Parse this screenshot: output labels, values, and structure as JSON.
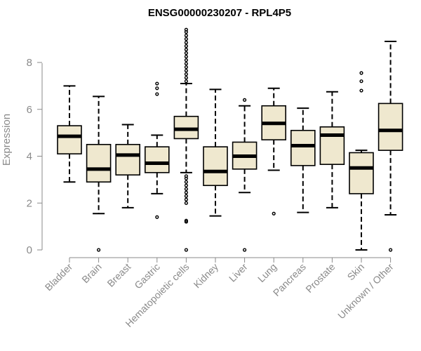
{
  "chart_data": {
    "type": "box",
    "title": "ENSG00000230207 - RPL4P5",
    "ylabel": "Expression",
    "xlabel": "",
    "ylim": [
      0,
      9.4
    ],
    "yticks": [
      0,
      2,
      4,
      6,
      8
    ],
    "box_fill": "#efe8cf",
    "categories": [
      "Bladder",
      "Brain",
      "Breast",
      "Gastric",
      "Hematopoietic cells",
      "Kidney",
      "Liver",
      "Lung",
      "Pancreas",
      "Prostate",
      "Skin",
      "Unknown / Other"
    ],
    "boxes": [
      {
        "min": 2.9,
        "q1": 4.1,
        "median": 4.85,
        "q3": 5.3,
        "max": 7.0,
        "outliers": []
      },
      {
        "min": 1.55,
        "q1": 2.9,
        "median": 3.45,
        "q3": 4.5,
        "max": 6.55,
        "outliers": [
          0.0
        ]
      },
      {
        "min": 1.8,
        "q1": 3.2,
        "median": 4.05,
        "q3": 4.5,
        "max": 5.35,
        "outliers": []
      },
      {
        "min": 2.4,
        "q1": 3.3,
        "median": 3.7,
        "q3": 4.4,
        "max": 4.9,
        "outliers": [
          1.4,
          6.65,
          6.9,
          7.1
        ]
      },
      {
        "min": 3.3,
        "q1": 4.75,
        "median": 5.15,
        "q3": 5.7,
        "max": 7.1,
        "outliers": [
          0.0,
          1.2,
          1.25,
          2.0,
          2.15,
          2.3,
          2.45,
          2.6,
          2.75,
          2.9,
          3.05,
          3.15,
          7.2,
          7.35,
          7.5,
          7.65,
          7.8,
          7.95,
          8.1,
          8.25,
          8.4,
          8.55,
          8.7,
          8.85,
          9.0,
          9.15,
          9.3,
          9.4
        ]
      },
      {
        "min": 1.45,
        "q1": 2.75,
        "median": 3.35,
        "q3": 4.4,
        "max": 6.85,
        "outliers": []
      },
      {
        "min": 2.45,
        "q1": 3.45,
        "median": 4.0,
        "q3": 4.6,
        "max": 6.15,
        "outliers": [
          0.0,
          6.4
        ]
      },
      {
        "min": 3.4,
        "q1": 4.7,
        "median": 5.4,
        "q3": 6.15,
        "max": 6.9,
        "outliers": [
          1.55
        ]
      },
      {
        "min": 1.6,
        "q1": 3.6,
        "median": 4.45,
        "q3": 5.1,
        "max": 6.05,
        "outliers": []
      },
      {
        "min": 1.8,
        "q1": 3.65,
        "median": 4.9,
        "q3": 5.25,
        "max": 6.75,
        "outliers": []
      },
      {
        "min": 0.0,
        "q1": 2.4,
        "median": 3.5,
        "q3": 4.15,
        "max": 4.25,
        "outliers": [
          6.8,
          7.2,
          7.55
        ]
      },
      {
        "min": 1.5,
        "q1": 4.25,
        "median": 5.1,
        "q3": 6.25,
        "max": 8.9,
        "outliers": [
          0.0
        ]
      }
    ]
  }
}
